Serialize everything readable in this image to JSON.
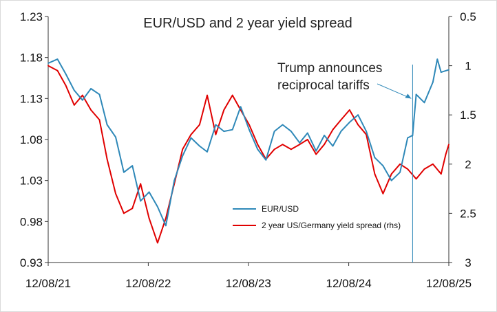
{
  "chart_data": {
    "type": "line",
    "title": "EUR/USD and 2 year yield spread",
    "xlabel": "",
    "ylabel": "",
    "x_range": [
      "2021-08-12",
      "2025-08-12"
    ],
    "x_ticks": [
      "12/08/21",
      "12/08/22",
      "12/08/23",
      "12/08/24",
      "12/08/25"
    ],
    "y_left": {
      "lim": [
        0.93,
        1.23
      ],
      "ticks": [
        "0.93",
        "0.98",
        "1.03",
        "1.08",
        "1.13",
        "1.18",
        "1.23"
      ]
    },
    "y_right": {
      "lim": [
        0.5,
        3
      ],
      "inverted": true,
      "ticks": [
        "0.5",
        "1",
        "1.5",
        "2",
        "2.5",
        "3"
      ]
    },
    "grid": false,
    "legend_position": "center-right",
    "annotation": {
      "lines": [
        "Trump announces",
        "reciprocal tariffs"
      ],
      "date": "2025-04-02"
    },
    "series": [
      {
        "name": "EUR/USD",
        "axis": "left",
        "color": "#2e88b8",
        "points": [
          [
            "2021-08-12",
            1.173
          ],
          [
            "2021-09-15",
            1.178
          ],
          [
            "2021-10-15",
            1.16
          ],
          [
            "2021-11-15",
            1.14
          ],
          [
            "2021-12-15",
            1.128
          ],
          [
            "2022-01-15",
            1.142
          ],
          [
            "2022-02-15",
            1.135
          ],
          [
            "2022-03-15",
            1.098
          ],
          [
            "2022-04-15",
            1.083
          ],
          [
            "2022-05-15",
            1.04
          ],
          [
            "2022-06-15",
            1.048
          ],
          [
            "2022-07-15",
            1.005
          ],
          [
            "2022-08-15",
            1.016
          ],
          [
            "2022-09-15",
            0.998
          ],
          [
            "2022-10-15",
            0.975
          ],
          [
            "2022-11-15",
            1.03
          ],
          [
            "2022-12-15",
            1.06
          ],
          [
            "2023-01-15",
            1.082
          ],
          [
            "2023-02-15",
            1.072
          ],
          [
            "2023-03-15",
            1.065
          ],
          [
            "2023-04-15",
            1.098
          ],
          [
            "2023-05-15",
            1.09
          ],
          [
            "2023-06-15",
            1.092
          ],
          [
            "2023-07-15",
            1.12
          ],
          [
            "2023-08-15",
            1.092
          ],
          [
            "2023-09-15",
            1.068
          ],
          [
            "2023-10-15",
            1.055
          ],
          [
            "2023-11-15",
            1.09
          ],
          [
            "2023-12-15",
            1.098
          ],
          [
            "2024-01-15",
            1.09
          ],
          [
            "2024-02-15",
            1.076
          ],
          [
            "2024-03-15",
            1.088
          ],
          [
            "2024-04-15",
            1.066
          ],
          [
            "2024-05-15",
            1.085
          ],
          [
            "2024-06-15",
            1.072
          ],
          [
            "2024-07-15",
            1.09
          ],
          [
            "2024-08-15",
            1.101
          ],
          [
            "2024-09-15",
            1.11
          ],
          [
            "2024-10-15",
            1.09
          ],
          [
            "2024-11-15",
            1.058
          ],
          [
            "2024-12-15",
            1.048
          ],
          [
            "2025-01-15",
            1.03
          ],
          [
            "2025-02-15",
            1.04
          ],
          [
            "2025-03-15",
            1.082
          ],
          [
            "2025-04-02",
            1.085
          ],
          [
            "2025-04-15",
            1.135
          ],
          [
            "2025-05-15",
            1.125
          ],
          [
            "2025-06-15",
            1.15
          ],
          [
            "2025-07-01",
            1.178
          ],
          [
            "2025-07-15",
            1.162
          ],
          [
            "2025-08-12",
            1.165
          ]
        ]
      },
      {
        "name": "2 year US/Germany yield spread (rhs)",
        "axis": "right",
        "color": "#e00000",
        "points": [
          [
            "2021-08-12",
            1.0
          ],
          [
            "2021-09-15",
            1.05
          ],
          [
            "2021-10-15",
            1.2
          ],
          [
            "2021-11-15",
            1.4
          ],
          [
            "2021-12-15",
            1.3
          ],
          [
            "2022-01-15",
            1.45
          ],
          [
            "2022-02-15",
            1.55
          ],
          [
            "2022-03-15",
            1.95
          ],
          [
            "2022-04-15",
            2.3
          ],
          [
            "2022-05-15",
            2.5
          ],
          [
            "2022-06-15",
            2.45
          ],
          [
            "2022-07-15",
            2.2
          ],
          [
            "2022-08-15",
            2.55
          ],
          [
            "2022-09-15",
            2.8
          ],
          [
            "2022-10-15",
            2.55
          ],
          [
            "2022-11-15",
            2.2
          ],
          [
            "2022-12-15",
            1.85
          ],
          [
            "2023-01-15",
            1.7
          ],
          [
            "2023-02-15",
            1.6
          ],
          [
            "2023-03-15",
            1.3
          ],
          [
            "2023-04-15",
            1.7
          ],
          [
            "2023-05-15",
            1.45
          ],
          [
            "2023-06-15",
            1.3
          ],
          [
            "2023-07-15",
            1.45
          ],
          [
            "2023-08-15",
            1.6
          ],
          [
            "2023-09-15",
            1.8
          ],
          [
            "2023-10-15",
            1.95
          ],
          [
            "2023-11-15",
            1.85
          ],
          [
            "2023-12-15",
            1.8
          ],
          [
            "2024-01-15",
            1.85
          ],
          [
            "2024-02-15",
            1.8
          ],
          [
            "2024-03-15",
            1.75
          ],
          [
            "2024-04-15",
            1.9
          ],
          [
            "2024-05-15",
            1.8
          ],
          [
            "2024-06-15",
            1.65
          ],
          [
            "2024-07-15",
            1.55
          ],
          [
            "2024-08-15",
            1.45
          ],
          [
            "2024-09-15",
            1.6
          ],
          [
            "2024-10-15",
            1.7
          ],
          [
            "2024-11-15",
            2.1
          ],
          [
            "2024-12-15",
            2.3
          ],
          [
            "2025-01-15",
            2.1
          ],
          [
            "2025-02-15",
            2.0
          ],
          [
            "2025-03-15",
            2.05
          ],
          [
            "2025-04-15",
            2.15
          ],
          [
            "2025-05-15",
            2.05
          ],
          [
            "2025-06-15",
            2.0
          ],
          [
            "2025-07-15",
            2.1
          ],
          [
            "2025-08-01",
            1.9
          ],
          [
            "2025-08-12",
            1.8
          ]
        ]
      }
    ]
  }
}
